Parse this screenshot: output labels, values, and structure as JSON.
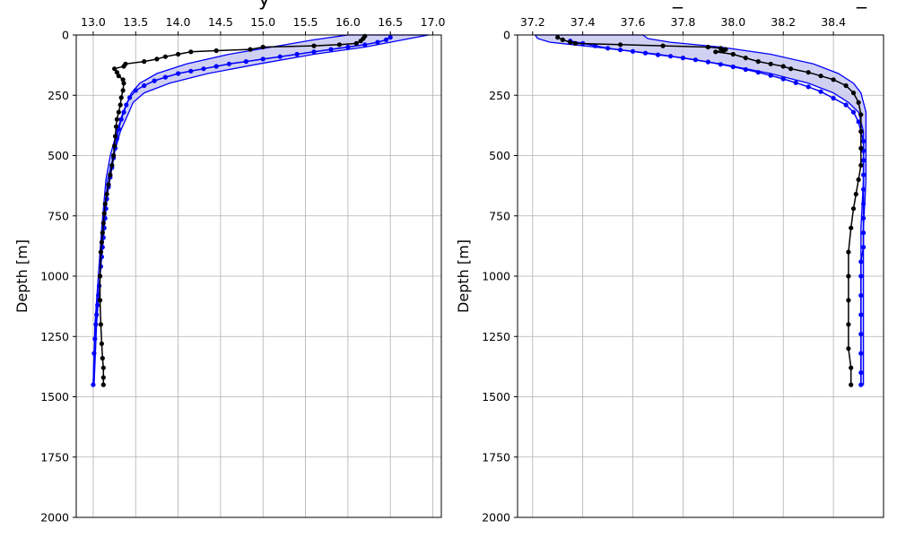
{
  "title_fragment": "y",
  "title_tail": "_",
  "chart_data": [
    {
      "type": "line",
      "xlim": [
        12.8,
        17.1
      ],
      "ylim": [
        0,
        2000
      ],
      "y_inverted": true,
      "xticks": [
        13.0,
        13.5,
        14.0,
        14.5,
        15.0,
        15.5,
        16.0,
        16.5,
        17.0
      ],
      "yticks": [
        0,
        250,
        500,
        750,
        1000,
        1250,
        1500,
        1750,
        2000
      ],
      "xtick_labels": [
        "13.0",
        "13.5",
        "14.0",
        "14.5",
        "15.0",
        "15.5",
        "16.0",
        "16.5",
        "17.0"
      ],
      "ytick_labels": [
        "0",
        "250",
        "500",
        "750",
        "1000",
        "1250",
        "1500",
        "1750",
        "2000"
      ],
      "ylabel": "Depth [m]",
      "xaxis_position": "top",
      "grid": true,
      "band": {
        "color": "#0000ff",
        "fill": "#c8c8f0",
        "y": [
          0,
          20,
          50,
          80,
          120,
          160,
          200,
          240,
          280,
          320,
          400,
          500,
          600,
          800,
          1000,
          1200,
          1450
        ],
        "lower": [
          16.0,
          15.6,
          15.1,
          14.6,
          14.1,
          13.75,
          13.55,
          13.45,
          13.4,
          13.35,
          13.28,
          13.2,
          13.15,
          13.1,
          13.06,
          13.02,
          13.0
        ],
        "upper": [
          16.95,
          16.65,
          16.2,
          15.6,
          14.95,
          14.35,
          13.9,
          13.6,
          13.47,
          13.42,
          13.32,
          13.24,
          13.17,
          13.12,
          13.08,
          13.04,
          13.01
        ]
      },
      "series": [
        {
          "color": "#0000ff",
          "x": [
            16.5,
            16.45,
            16.35,
            16.2,
            16.0,
            15.8,
            15.6,
            15.4,
            15.2,
            15.0,
            14.8,
            14.6,
            14.45,
            14.3,
            14.15,
            14.0,
            13.85,
            13.72,
            13.6,
            13.5,
            13.43,
            13.39,
            13.36,
            13.33,
            13.3,
            13.28,
            13.26,
            13.24,
            13.22,
            13.2,
            13.18,
            13.16,
            13.15,
            13.14,
            13.13,
            13.12,
            13.11,
            13.1,
            13.09,
            13.08,
            13.07,
            13.06,
            13.05,
            13.04,
            13.03,
            13.02,
            13.01,
            13.0
          ],
          "y": [
            10,
            20,
            30,
            40,
            50,
            60,
            70,
            80,
            90,
            100,
            110,
            120,
            130,
            140,
            150,
            160,
            175,
            190,
            210,
            230,
            260,
            290,
            320,
            350,
            390,
            430,
            470,
            510,
            550,
            590,
            630,
            680,
            720,
            760,
            800,
            840,
            880,
            920,
            960,
            1000,
            1040,
            1080,
            1120,
            1160,
            1200,
            1260,
            1320,
            1450
          ]
        },
        {
          "color": "#000000",
          "x": [
            16.2,
            16.18,
            16.15,
            16.1,
            15.9,
            15.6,
            15.0,
            14.85,
            14.45,
            14.15,
            14.0,
            13.85,
            13.75,
            13.6,
            13.38,
            13.36,
            13.25,
            13.28,
            13.3,
            13.35,
            13.36,
            13.35,
            13.33,
            13.32,
            13.3,
            13.28,
            13.27,
            13.26,
            13.25,
            13.24,
            13.22,
            13.2,
            13.18,
            13.16,
            13.14,
            13.13,
            13.12,
            13.11,
            13.1,
            13.09,
            13.08,
            13.08,
            13.09,
            13.1,
            13.11,
            13.12,
            13.12,
            13.12
          ],
          "y": [
            5,
            15,
            25,
            35,
            40,
            45,
            50,
            60,
            65,
            70,
            80,
            90,
            100,
            110,
            120,
            130,
            140,
            155,
            170,
            185,
            200,
            230,
            260,
            290,
            320,
            350,
            380,
            420,
            460,
            500,
            540,
            580,
            620,
            660,
            700,
            740,
            780,
            820,
            860,
            900,
            1000,
            1100,
            1200,
            1280,
            1340,
            1380,
            1420,
            1450
          ]
        }
      ]
    },
    {
      "type": "line",
      "xlim": [
        37.14,
        38.6
      ],
      "ylim": [
        0,
        2000
      ],
      "y_inverted": true,
      "xticks": [
        37.2,
        37.4,
        37.6,
        37.8,
        38.0,
        38.2,
        38.4
      ],
      "yticks": [
        0,
        250,
        500,
        750,
        1000,
        1250,
        1500,
        1750,
        2000
      ],
      "xtick_labels": [
        "37.2",
        "37.4",
        "37.6",
        "37.8",
        "38.0",
        "38.2",
        "38.4"
      ],
      "ytick_labels": [
        "0",
        "250",
        "500",
        "750",
        "1000",
        "1250",
        "1500",
        "1750",
        "2000"
      ],
      "ylabel": "Depth [m]",
      "xaxis_position": "top",
      "grid": true,
      "band": {
        "color": "#0000ff",
        "fill": "#c8c8f0",
        "y": [
          0,
          15,
          30,
          50,
          80,
          120,
          160,
          200,
          240,
          280,
          320,
          360,
          400,
          500,
          600,
          800,
          1000,
          1200,
          1450
        ],
        "lower": [
          37.21,
          37.22,
          37.27,
          37.45,
          37.7,
          37.95,
          38.15,
          38.3,
          38.4,
          38.46,
          38.5,
          38.51,
          38.52,
          38.52,
          38.52,
          38.51,
          38.51,
          38.51,
          38.51
        ],
        "upper": [
          37.64,
          37.66,
          37.75,
          37.95,
          38.15,
          38.32,
          38.42,
          38.48,
          38.51,
          38.52,
          38.53,
          38.53,
          38.53,
          38.53,
          38.53,
          38.52,
          38.52,
          38.52,
          38.52
        ]
      },
      "series": [
        {
          "color": "#0000ff",
          "x": [
            37.35,
            37.4,
            37.45,
            37.5,
            37.55,
            37.6,
            37.65,
            37.7,
            37.75,
            37.8,
            37.85,
            37.9,
            37.95,
            38.0,
            38.05,
            38.1,
            38.15,
            38.2,
            38.25,
            38.3,
            38.35,
            38.4,
            38.45,
            38.48,
            38.5,
            38.51,
            38.52,
            38.52,
            38.52,
            38.52,
            38.52,
            38.52,
            38.52,
            38.52,
            38.52,
            38.51,
            38.51,
            38.51,
            38.51,
            38.51,
            38.51,
            38.51,
            38.51
          ],
          "y": [
            25,
            35,
            45,
            55,
            62,
            68,
            75,
            82,
            88,
            95,
            103,
            112,
            122,
            132,
            143,
            155,
            168,
            182,
            198,
            215,
            235,
            262,
            290,
            320,
            360,
            400,
            440,
            480,
            520,
            580,
            640,
            700,
            760,
            820,
            880,
            940,
            1000,
            1080,
            1160,
            1240,
            1320,
            1400,
            1450
          ]
        },
        {
          "color": "#000000",
          "x": [
            37.3,
            37.32,
            37.35,
            37.37,
            37.55,
            37.72,
            37.9,
            37.95,
            37.97,
            37.96,
            37.93,
            38.0,
            38.05,
            38.1,
            38.15,
            38.2,
            38.23,
            38.3,
            38.35,
            38.4,
            38.45,
            38.48,
            38.5,
            38.51,
            38.51,
            38.51,
            38.51,
            38.5,
            38.49,
            38.48,
            38.47,
            38.46,
            38.46,
            38.46,
            38.46,
            38.46,
            38.47,
            38.47
          ],
          "y": [
            10,
            20,
            30,
            35,
            40,
            45,
            50,
            55,
            60,
            65,
            70,
            80,
            95,
            110,
            120,
            130,
            140,
            155,
            170,
            185,
            210,
            240,
            280,
            330,
            400,
            470,
            540,
            600,
            660,
            720,
            800,
            900,
            1000,
            1100,
            1200,
            1300,
            1380,
            1450
          ]
        }
      ]
    }
  ]
}
